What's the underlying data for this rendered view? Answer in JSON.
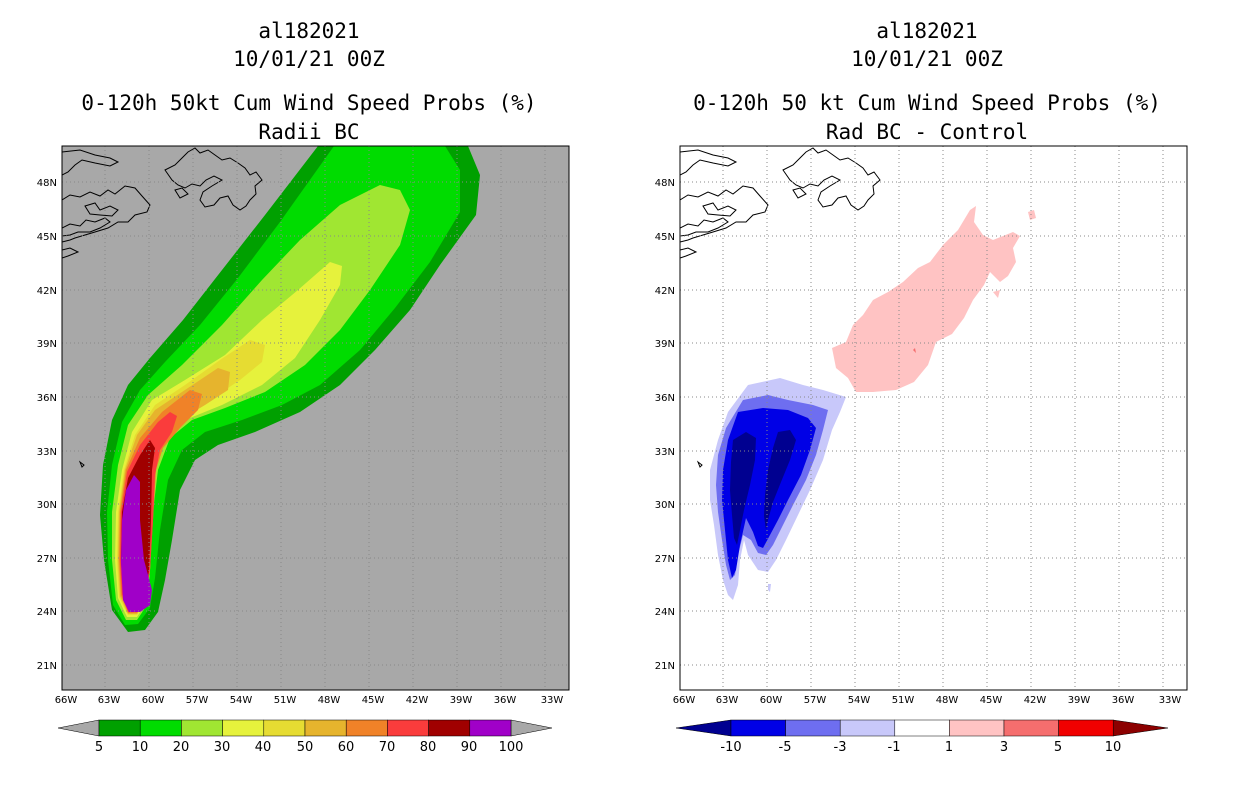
{
  "left": {
    "storm_id": "al182021",
    "datetime": "10/01/21 00Z",
    "product_title": "0-120h 50kt Cum Wind Speed Probs (%)",
    "subtitle": "Radii BC",
    "background_color": "#a8a8a8",
    "colorbar": {
      "colors": [
        "#00a000",
        "#00dc00",
        "#a0e632",
        "#e6f23c",
        "#e6dc32",
        "#e6b42d",
        "#f08228",
        "#fa3c3c",
        "#a00000",
        "#a000c8"
      ],
      "labels": [
        "5",
        "10",
        "20",
        "30",
        "40",
        "50",
        "60",
        "70",
        "80",
        "90",
        "100"
      ]
    }
  },
  "right": {
    "storm_id": "al182021",
    "datetime": "10/01/21 00Z",
    "product_title": "0-120h 50 kt Cum Wind Speed Probs (%)",
    "subtitle": "Rad BC - Control",
    "background_color": "#ffffff",
    "colorbar": {
      "colors": [
        "#000090",
        "#0000e6",
        "#6e6ef0",
        "#c8c8fa",
        "#ffffff",
        "#ffc3c3",
        "#f56e6e",
        "#f00000",
        "#8c0000"
      ],
      "labels": [
        "-10",
        "-5",
        "-3",
        "-1",
        "1",
        "3",
        "5",
        "10"
      ]
    }
  },
  "axes": {
    "lon_labels": [
      "66W",
      "63W",
      "60W",
      "57W",
      "54W",
      "51W",
      "48W",
      "45W",
      "42W",
      "39W",
      "36W",
      "33W"
    ],
    "lat_labels": [
      "48N",
      "45N",
      "42N",
      "39N",
      "36N",
      "33N",
      "30N",
      "27N",
      "24N",
      "21N"
    ]
  },
  "colors": {
    "coast": "#000000",
    "grid": "#888888"
  }
}
